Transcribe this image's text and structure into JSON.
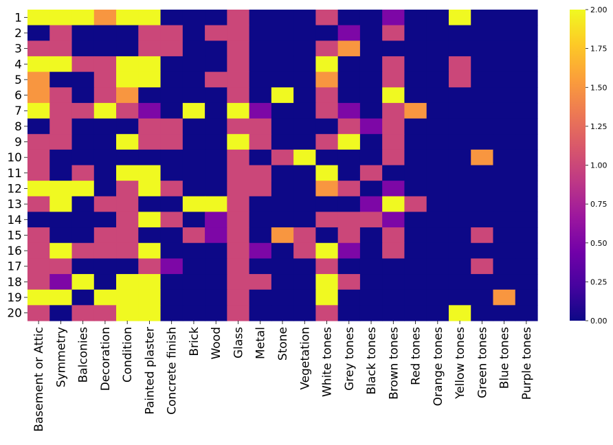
{
  "chart_data": {
    "type": "heatmap",
    "title": "",
    "xlabel": "",
    "ylabel": "",
    "colormap": "plasma",
    "vmin": 0,
    "vmax": 2,
    "colorbar": {
      "placement": "right",
      "ticks": [
        "0.00",
        "0.25",
        "0.50",
        "0.75",
        "1.00",
        "1.25",
        "1.50",
        "1.75",
        "2.00"
      ]
    },
    "x_categories": [
      "Basement or Attic",
      "Symmetry",
      "Balconies",
      "Decoration",
      "Condition",
      "Painted plaster",
      "Concrete finish",
      "Brick",
      "Wood",
      "Glass",
      "Metal",
      "Stone",
      "Vegetation",
      "White tones",
      "Grey tones",
      "Black tones",
      "Brown tones",
      "Red tones",
      "Orange tones",
      "Yellow tones",
      "Green tones",
      "Blue tones",
      "Purple tones"
    ],
    "y_categories": [
      "1",
      "2",
      "3",
      "4",
      "5",
      "6",
      "7",
      "8",
      "9",
      "10",
      "11",
      "12",
      "13",
      "14",
      "15",
      "16",
      "17",
      "18",
      "19",
      "20"
    ],
    "values": [
      [
        2,
        2,
        2,
        1.5,
        2,
        2,
        0,
        0,
        0,
        1,
        0,
        0,
        0,
        1,
        0,
        0,
        0.5,
        0,
        0,
        2,
        0,
        0,
        0
      ],
      [
        0,
        1,
        0,
        0,
        0,
        1,
        1,
        0,
        1,
        1,
        0,
        0,
        0,
        0,
        0.5,
        0,
        1,
        0,
        0,
        0,
        0,
        0,
        0
      ],
      [
        1,
        1,
        0,
        0,
        0,
        1,
        1,
        0,
        0,
        1,
        0,
        0,
        0,
        1,
        1.5,
        0,
        0,
        0,
        0,
        0,
        0,
        0,
        0
      ],
      [
        2,
        2,
        1,
        1,
        2,
        2,
        0,
        0,
        0,
        1,
        0,
        0,
        0,
        2,
        0,
        0,
        1,
        0,
        0,
        1,
        0,
        0,
        0
      ],
      [
        1.5,
        0,
        0,
        1,
        2,
        2,
        0,
        0,
        1,
        1,
        0,
        0,
        0,
        1.5,
        0,
        0,
        1,
        0,
        0,
        1,
        0,
        0,
        0
      ],
      [
        1.5,
        1,
        0,
        1,
        1.5,
        0,
        0,
        0,
        0,
        1,
        0,
        2,
        0,
        1,
        0,
        0,
        2,
        0,
        0,
        0,
        0,
        0,
        0
      ],
      [
        2,
        1,
        1,
        2,
        1,
        0.5,
        0,
        2,
        0,
        2,
        0.5,
        0,
        0,
        1,
        0.5,
        0,
        1,
        1.5,
        0,
        0,
        0,
        0,
        0
      ],
      [
        0,
        1,
        0,
        0,
        0,
        1,
        1,
        0,
        0,
        1,
        1,
        0,
        0,
        0,
        1,
        0.5,
        1,
        0,
        0,
        0,
        0,
        0,
        0
      ],
      [
        1,
        1,
        0,
        0,
        2,
        1,
        1,
        0,
        0,
        2,
        1,
        0,
        0,
        1,
        2,
        0,
        1,
        0,
        0,
        0,
        0,
        0,
        0
      ],
      [
        1,
        0,
        0,
        0,
        0,
        0,
        0,
        0,
        0,
        1,
        0,
        1,
        2,
        0,
        0,
        0,
        1,
        0,
        0,
        0,
        1.5,
        0,
        0
      ],
      [
        1,
        0,
        1,
        0,
        2,
        2,
        0,
        0,
        0,
        1,
        1,
        0,
        0,
        2,
        0,
        1,
        0,
        0,
        0,
        0,
        0,
        0,
        0
      ],
      [
        2,
        2,
        2,
        0,
        1,
        2,
        1,
        0,
        0,
        1,
        1,
        0,
        0,
        1.5,
        1,
        0,
        0.5,
        0,
        0,
        0,
        0,
        0,
        0
      ],
      [
        1,
        2,
        0,
        1,
        1,
        0,
        0,
        2,
        2,
        1,
        0,
        0,
        0,
        0,
        0,
        0.5,
        2,
        1,
        0,
        0,
        0,
        0,
        0
      ],
      [
        0,
        0,
        0,
        0,
        1,
        2,
        1,
        0,
        0.5,
        1,
        0,
        0,
        0,
        1,
        1,
        1,
        0.5,
        0,
        0,
        0,
        0,
        0,
        0
      ],
      [
        1,
        0,
        0,
        1,
        1,
        0,
        0,
        1,
        0.5,
        1,
        0,
        1.5,
        1,
        0,
        1,
        0,
        1,
        0,
        0,
        0,
        1,
        0,
        0
      ],
      [
        1,
        2,
        1,
        1,
        1,
        2,
        0,
        0,
        0,
        1,
        0.5,
        0,
        1,
        2,
        0.5,
        0,
        1,
        0,
        0,
        0,
        0,
        0,
        0
      ],
      [
        1,
        1,
        0,
        0,
        0,
        1,
        0.5,
        0,
        0,
        1,
        0,
        0,
        0,
        1,
        0,
        0,
        0,
        0,
        0,
        0,
        1,
        0,
        0
      ],
      [
        1,
        0.5,
        2,
        0,
        2,
        2,
        0,
        0,
        0,
        1,
        1,
        0,
        0,
        2,
        1,
        0,
        0,
        0,
        0,
        0,
        0,
        0,
        0
      ],
      [
        2,
        2,
        0,
        2,
        2,
        2,
        0,
        0,
        0,
        1,
        0,
        0,
        0,
        2,
        0,
        0,
        0,
        0,
        0,
        0,
        0,
        1.5,
        0
      ],
      [
        1,
        0,
        1,
        1,
        2,
        2,
        0,
        0,
        0,
        1,
        0,
        0,
        0,
        1,
        0,
        0,
        0,
        0,
        0,
        2,
        0,
        0,
        0
      ]
    ]
  },
  "colors": {
    "plasma_stops": [
      "#0d0887",
      "#46039f",
      "#7201a8",
      "#9c179e",
      "#bd3786",
      "#d8576b",
      "#ed7953",
      "#fb9f3a",
      "#fdca26",
      "#f0f921"
    ]
  }
}
